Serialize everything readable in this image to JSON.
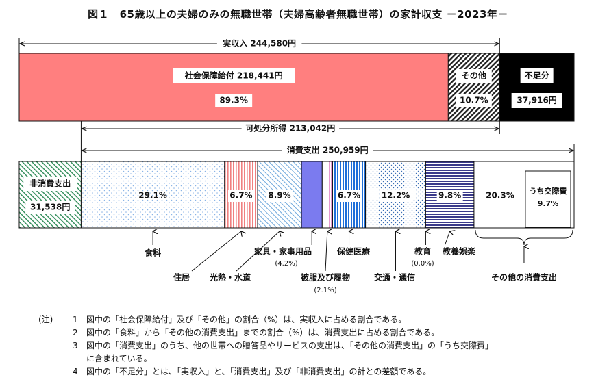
{
  "title": "図１　65歳以上の夫婦のみの無職世帯（夫婦高齢者無職世帯）の家計収支 －2023年－",
  "chart_data": {
    "type": "bar",
    "unit": "円",
    "income_bar": {
      "total_label": "実収入",
      "total_value": "244,580円",
      "total": 244580,
      "segments": [
        {
          "key": "social",
          "name": "社会保障給付",
          "value_text": "218,441円",
          "value": 218441,
          "pct": "89.3%",
          "color": "#ff7f7f"
        },
        {
          "key": "other",
          "name": "その他",
          "value_text": "",
          "value": 26139,
          "pct": "10.7%",
          "color": "hatch-black"
        },
        {
          "key": "shortfall",
          "name": "不足分",
          "value_text": "37,916円",
          "value": 37916,
          "pct": "",
          "color": "#000000"
        }
      ]
    },
    "disposable": {
      "label": "可処分所得",
      "value_text": "213,042円",
      "value": 213042
    },
    "consumption": {
      "label": "消費支出",
      "value_text": "250,959円",
      "value": 250959
    },
    "non_consumption": {
      "label": "非消費支出",
      "value_text": "31,538円",
      "value": 31538
    },
    "expense_segments": [
      {
        "key": "food",
        "pct": 29.1,
        "label": "29.1%",
        "name": "食料",
        "sub": ""
      },
      {
        "key": "housing",
        "pct": 6.7,
        "label": "6.7%",
        "name": "住居",
        "sub": ""
      },
      {
        "key": "utilities",
        "pct": 8.9,
        "label": "8.9%",
        "name": "光熱・水道",
        "sub": ""
      },
      {
        "key": "furniture",
        "pct": 4.2,
        "label": "",
        "name": "家具・家事用品",
        "sub": "(4.2%)"
      },
      {
        "key": "clothing",
        "pct": 2.1,
        "label": "",
        "name": "被服及び履物",
        "sub": "(2.1%)"
      },
      {
        "key": "medical",
        "pct": 6.7,
        "label": "6.7%",
        "name": "保健医療",
        "sub": ""
      },
      {
        "key": "transport",
        "pct": 12.2,
        "label": "12.2%",
        "name": "交通・通信",
        "sub": ""
      },
      {
        "key": "education",
        "pct": 0.0,
        "label": "",
        "name": "教育",
        "sub": "(0.0%)"
      },
      {
        "key": "recreation",
        "pct": 9.8,
        "label": "9.8%",
        "name": "教養娯楽",
        "sub": ""
      },
      {
        "key": "other",
        "pct": 20.3,
        "label": "20.3%",
        "name": "その他の消費支出",
        "sub": ""
      }
    ],
    "inner_box": {
      "name": "うち交際費",
      "pct": "9.7%"
    }
  },
  "notes": {
    "head": "(注)",
    "items": [
      {
        "num": "1",
        "text": "図中の「社会保障給付」及び「その他」の割合（%）は、実収入に占める割合である。"
      },
      {
        "num": "2",
        "text": "図中の「食料」から「その他の消費支出」までの割合（%）は、消費支出に占める割合である。"
      },
      {
        "num": "3",
        "text": "図中の「消費支出」のうち、他の世帯への贈答品やサービスの支出は、「その他の消費支出」の「うち交際費」"
      },
      {
        "num": "",
        "text": "に含まれている。"
      },
      {
        "num": "4",
        "text": "図中の「不足分」とは、「実収入」と、「消費支出」及び「非消費支出」の計との差額である。"
      }
    ]
  }
}
